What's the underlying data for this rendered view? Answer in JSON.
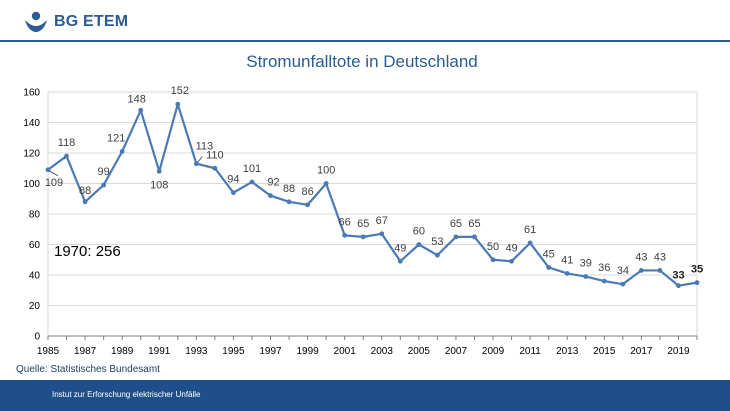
{
  "header": {
    "brand": "BG ETEM"
  },
  "chart_data": {
    "type": "line",
    "title": "Stromunfalltote in Deutschland",
    "xlabel": "",
    "ylabel": "",
    "xlim": [
      1985,
      2020
    ],
    "ylim": [
      0,
      160
    ],
    "yticks": [
      0,
      20,
      40,
      60,
      80,
      100,
      120,
      140,
      160
    ],
    "xtick_labels": [
      "1985",
      "1987",
      "1989",
      "1991",
      "1993",
      "1995",
      "1997",
      "1999",
      "2001",
      "2003",
      "2005",
      "2007",
      "2009",
      "2011",
      "2013",
      "2015",
      "2017",
      "2019"
    ],
    "grid": true,
    "line_color": "#4a7ab5",
    "series": [
      {
        "name": "Stromunfalltote",
        "x": [
          1985,
          1986,
          1987,
          1988,
          1989,
          1990,
          1991,
          1992,
          1993,
          1994,
          1995,
          1996,
          1997,
          1998,
          1999,
          2000,
          2001,
          2002,
          2003,
          2004,
          2005,
          2006,
          2007,
          2008,
          2009,
          2010,
          2011,
          2012,
          2013,
          2014,
          2015,
          2016,
          2017,
          2018,
          2019,
          2020
        ],
        "values": [
          109,
          118,
          88,
          99,
          121,
          148,
          108,
          152,
          113,
          110,
          94,
          101,
          92,
          88,
          86,
          100,
          66,
          65,
          67,
          49,
          60,
          53,
          65,
          65,
          50,
          49,
          61,
          45,
          41,
          39,
          36,
          34,
          43,
          43,
          33,
          35
        ]
      }
    ],
    "annotation": "1970: 256"
  },
  "source": "Quelle: Statistisches Bundesamt",
  "footer": {
    "text": "Instut  zur Erforschung elektrischer Unfälle"
  }
}
